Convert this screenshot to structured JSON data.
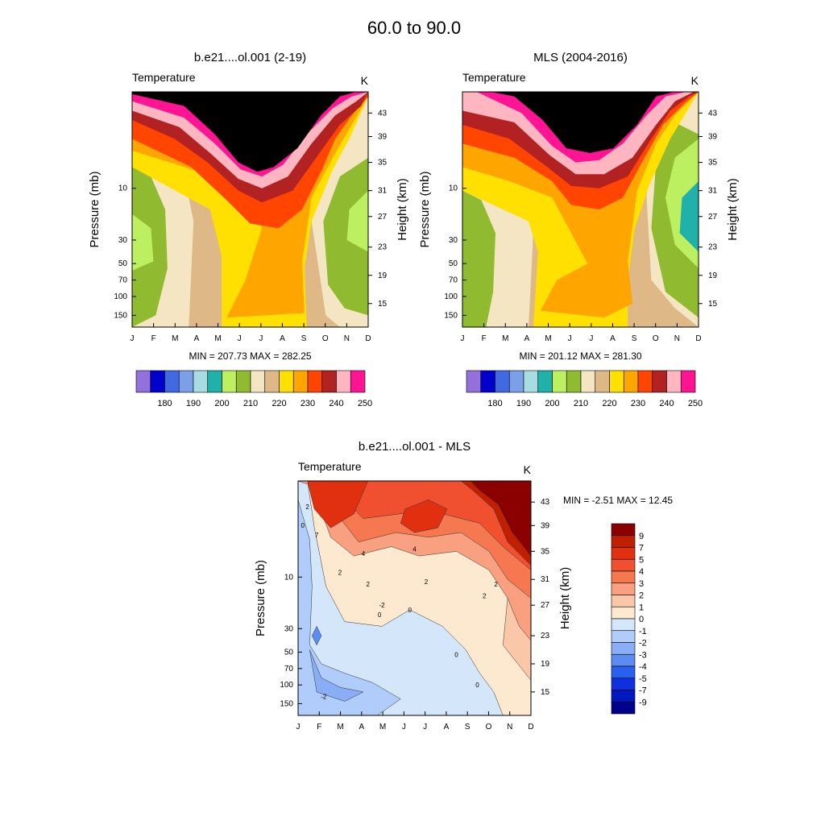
{
  "figure": {
    "title": "60.0 to  90.0"
  },
  "chart_data": [
    {
      "type": "heatmap",
      "title": "b.e21....ol.001 (2-19)",
      "variable": "Temperature",
      "units": "K",
      "xlabel": "",
      "ylabel": "Pressure (mb)",
      "ylabel_right": "Height (km)",
      "x_ticks": [
        "J",
        "F",
        "M",
        "A",
        "M",
        "J",
        "J",
        "A",
        "S",
        "O",
        "N",
        "D"
      ],
      "y_ticks_pressure": [
        "10",
        "30",
        "50",
        "70",
        "100",
        "150"
      ],
      "y_ticks_height": [
        "43",
        "39",
        "35",
        "31",
        "27",
        "23",
        "19",
        "15"
      ],
      "stats": "MIN = 207.73  MAX = 282.25",
      "min": 207.73,
      "max": 282.25,
      "colorbar_labels": [
        "180",
        "190",
        "200",
        "210",
        "220",
        "230",
        "240",
        "250"
      ],
      "colorbar_colors": [
        "#9370db",
        "#0000cd",
        "#4169e1",
        "#7b9fe8",
        "#a8dce3",
        "#20b2aa",
        "#bdf060",
        "#90bb30",
        "#f5e6c3",
        "#deb887",
        "#ffe000",
        "#ffa500",
        "#ff4500",
        "#b22222",
        "#ffb6c1",
        "#ff1493"
      ],
      "level_boundaries": [
        175,
        180,
        185,
        190,
        195,
        200,
        205,
        210,
        215,
        220,
        225,
        230,
        235,
        240,
        245,
        250
      ]
    },
    {
      "type": "heatmap",
      "title": "MLS (2004-2016)",
      "variable": "Temperature",
      "units": "K",
      "xlabel": "",
      "ylabel": "Pressure (mb)",
      "ylabel_right": "Height (km)",
      "x_ticks": [
        "J",
        "F",
        "M",
        "A",
        "M",
        "J",
        "J",
        "A",
        "S",
        "O",
        "N",
        "D"
      ],
      "y_ticks_pressure": [
        "10",
        "30",
        "50",
        "70",
        "100",
        "150"
      ],
      "y_ticks_height": [
        "43",
        "39",
        "35",
        "31",
        "27",
        "23",
        "19",
        "15"
      ],
      "stats": "MIN = 201.12  MAX = 281.30",
      "min": 201.12,
      "max": 281.3,
      "colorbar_labels": [
        "180",
        "190",
        "200",
        "210",
        "220",
        "230",
        "240",
        "250"
      ],
      "colorbar_colors": [
        "#9370db",
        "#0000cd",
        "#4169e1",
        "#7b9fe8",
        "#a8dce3",
        "#20b2aa",
        "#bdf060",
        "#90bb30",
        "#f5e6c3",
        "#deb887",
        "#ffe000",
        "#ffa500",
        "#ff4500",
        "#b22222",
        "#ffb6c1",
        "#ff1493"
      ]
    },
    {
      "type": "heatmap",
      "title": "b.e21....ol.001 - MLS",
      "variable": "Temperature",
      "units": "K",
      "xlabel": "",
      "ylabel": "Pressure (mb)",
      "ylabel_right": "Height (km)",
      "x_ticks": [
        "J",
        "F",
        "M",
        "A",
        "M",
        "J",
        "J",
        "A",
        "S",
        "O",
        "N",
        "D"
      ],
      "y_ticks_pressure": [
        "10",
        "30",
        "50",
        "70",
        "100",
        "150"
      ],
      "y_ticks_height": [
        "43",
        "39",
        "35",
        "31",
        "27",
        "23",
        "19",
        "15"
      ],
      "stats": "MIN =  -2.51  MAX =  12.45",
      "min": -2.51,
      "max": 12.45,
      "colorbar_labels": [
        "9",
        "7",
        "5",
        "4",
        "3",
        "2",
        "1",
        "0",
        "-1",
        "-2",
        "-3",
        "-4",
        "-5",
        "-7",
        "-9"
      ],
      "colorbar_colors": [
        "#8b0000",
        "#c02000",
        "#e03010",
        "#f05030",
        "#f57850",
        "#f8a080",
        "#fac8a8",
        "#fde8d0",
        "#d4e6fa",
        "#b0ccfa",
        "#8aaef5",
        "#5c8cf0",
        "#2a60f0",
        "#1030e0",
        "#0018c0",
        "#00008b"
      ],
      "contour_labels": [
        "2",
        "0",
        "7",
        "4",
        "2",
        "4",
        "2",
        "0",
        "2",
        "0",
        "-2",
        "0",
        "2",
        "2",
        "0",
        "-2"
      ]
    }
  ]
}
